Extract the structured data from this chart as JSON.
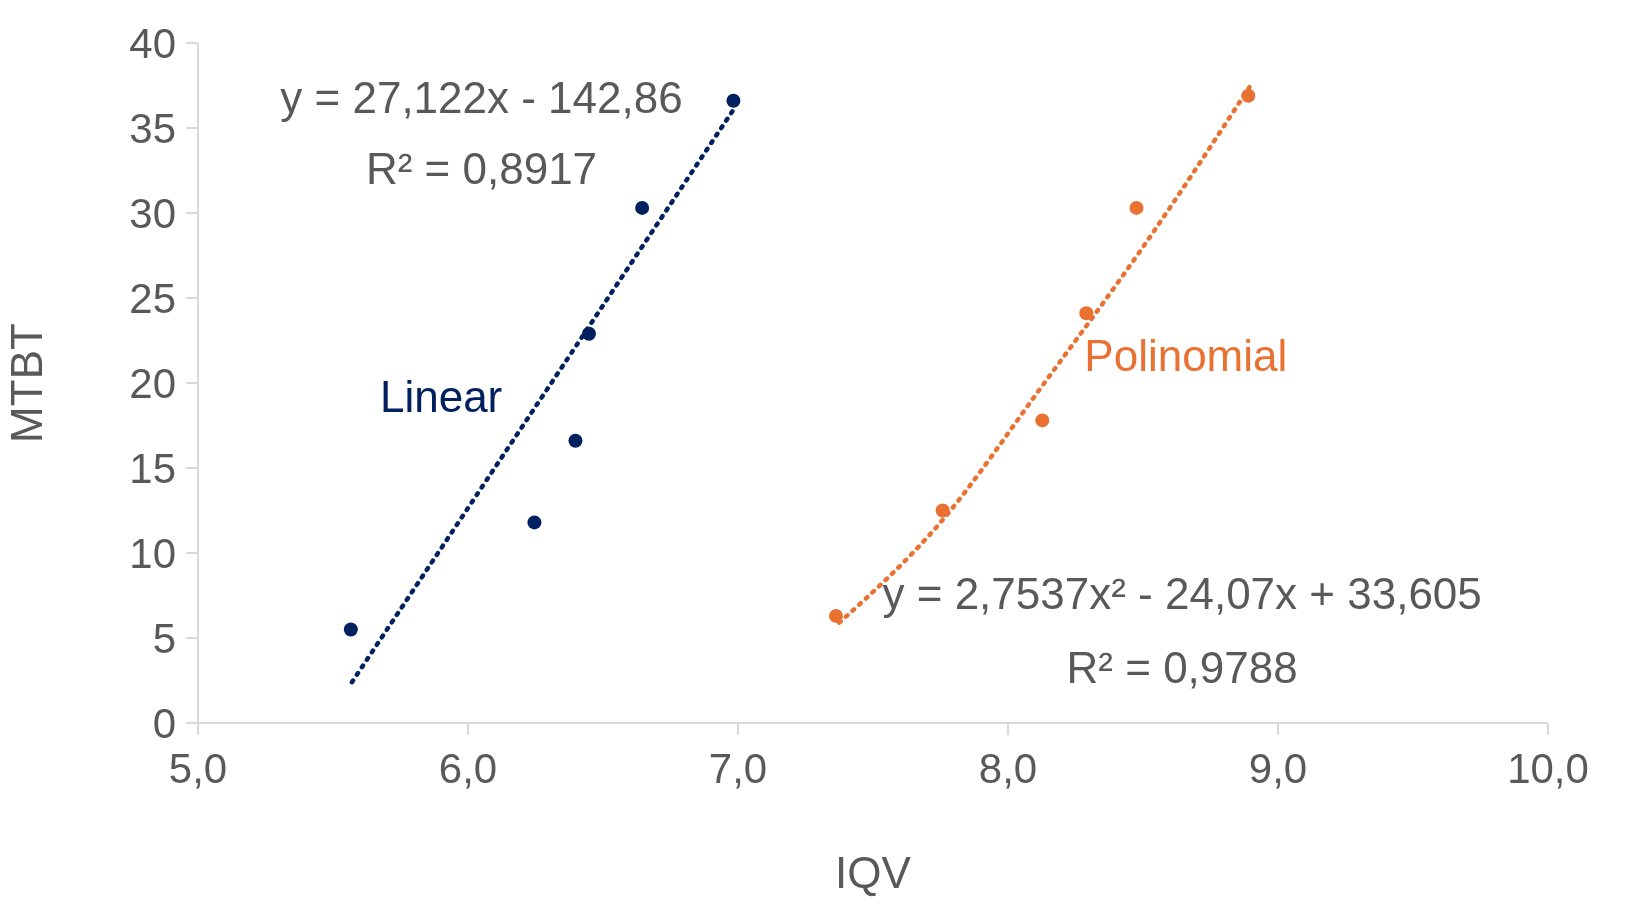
{
  "chart_data": {
    "type": "scatter",
    "xlabel": "IQV",
    "ylabel": "MTBT",
    "xlim": [
      5,
      10
    ],
    "xticks": [
      {
        "value": 5,
        "label": "5,0"
      },
      {
        "value": 6,
        "label": "6,0"
      },
      {
        "value": 7,
        "label": "7,0"
      },
      {
        "value": 8,
        "label": "8,0"
      },
      {
        "value": 9,
        "label": "9,0"
      },
      {
        "value": 10,
        "label": "10,0"
      }
    ],
    "ylim": [
      0,
      40
    ],
    "yticks": [
      0,
      5,
      10,
      15,
      20,
      25,
      30,
      35,
      40
    ],
    "grid": false,
    "legend": false,
    "marker": "circle",
    "series": [
      {
        "color": "#002060",
        "x": [
          5.566,
          6.246,
          6.398,
          6.448,
          6.645,
          6.983
        ],
        "values": [
          5.5,
          11.8,
          16.6,
          22.9,
          30.3,
          36.6
        ]
      },
      {
        "color": "#e97132",
        "x": [
          7.363,
          7.758,
          8.127,
          8.29,
          8.476,
          8.89
        ],
        "values": [
          6.3,
          12.5,
          17.8,
          24.1,
          30.3,
          36.9
        ]
      },
      {
        "type": "line",
        "name": "Linear",
        "color": "#002060",
        "marker": "none",
        "line_style": "dotted",
        "x": [
          5.57,
          6.98
        ],
        "values": [
          2.4,
          36.0
        ]
      },
      {
        "type": "line",
        "name": "Polinomial",
        "color": "#e97132",
        "marker": "none",
        "line_style": "dotted",
        "x": [
          7.375,
          7.75,
          8.13,
          8.5,
          8.894
        ],
        "values": [
          5.9,
          11.8,
          19.9,
          28.0,
          37.4
        ]
      }
    ],
    "annotations": [
      "y = 27,122x - 142,86",
      "R² = 0,8917",
      "y = 2,7537x² - 24,07x + 33,605",
      "R² = 0,9788"
    ]
  }
}
